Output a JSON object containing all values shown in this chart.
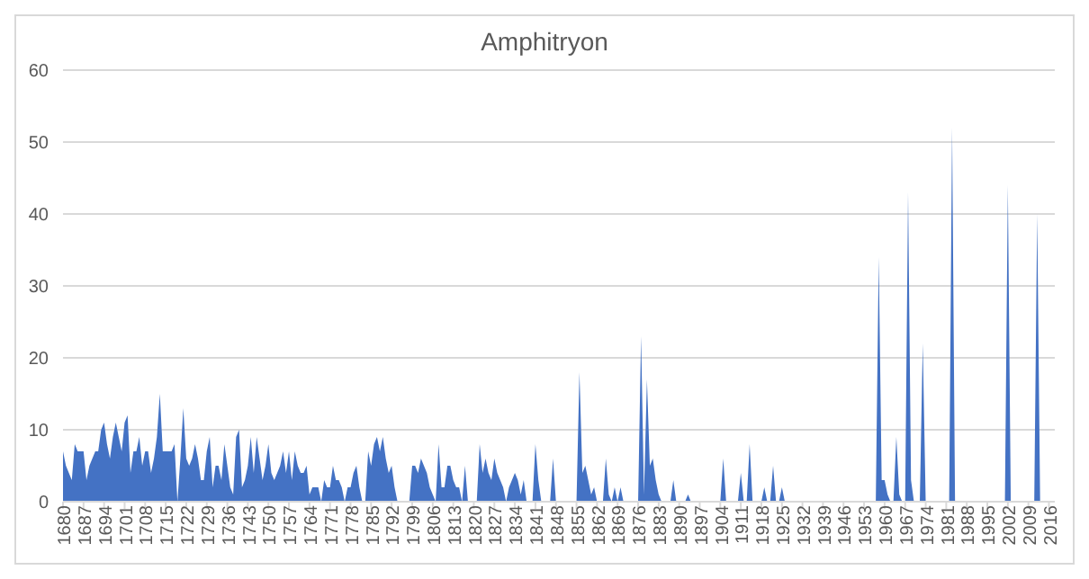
{
  "chart_data": {
    "type": "area",
    "title": "Amphitryon",
    "x": [
      1680,
      1681,
      1682,
      1683,
      1684,
      1685,
      1686,
      1687,
      1688,
      1689,
      1690,
      1691,
      1692,
      1693,
      1694,
      1695,
      1696,
      1697,
      1698,
      1699,
      1700,
      1701,
      1702,
      1703,
      1704,
      1705,
      1706,
      1707,
      1708,
      1709,
      1710,
      1711,
      1712,
      1713,
      1714,
      1715,
      1716,
      1717,
      1718,
      1719,
      1720,
      1721,
      1722,
      1723,
      1724,
      1725,
      1726,
      1727,
      1728,
      1729,
      1730,
      1731,
      1732,
      1733,
      1734,
      1735,
      1736,
      1737,
      1738,
      1739,
      1740,
      1741,
      1742,
      1743,
      1744,
      1745,
      1746,
      1747,
      1748,
      1749,
      1750,
      1751,
      1752,
      1753,
      1754,
      1755,
      1756,
      1757,
      1758,
      1759,
      1760,
      1761,
      1762,
      1763,
      1764,
      1765,
      1766,
      1767,
      1768,
      1769,
      1770,
      1771,
      1772,
      1773,
      1774,
      1775,
      1776,
      1777,
      1778,
      1779,
      1780,
      1781,
      1782,
      1783,
      1784,
      1785,
      1786,
      1787,
      1788,
      1789,
      1790,
      1791,
      1792,
      1793,
      1794,
      1798,
      1799,
      1800,
      1801,
      1802,
      1803,
      1804,
      1805,
      1806,
      1807,
      1808,
      1809,
      1810,
      1811,
      1812,
      1813,
      1814,
      1815,
      1816,
      1817,
      1818,
      1821,
      1822,
      1823,
      1824,
      1825,
      1826,
      1827,
      1828,
      1829,
      1830,
      1831,
      1832,
      1833,
      1834,
      1835,
      1836,
      1837,
      1838,
      1840,
      1841,
      1842,
      1843,
      1846,
      1847,
      1848,
      1855,
      1856,
      1857,
      1858,
      1859,
      1860,
      1861,
      1862,
      1864,
      1865,
      1866,
      1867,
      1868,
      1869,
      1870,
      1871,
      1876,
      1877,
      1878,
      1879,
      1880,
      1881,
      1882,
      1883,
      1884,
      1887,
      1888,
      1889,
      1892,
      1893,
      1894,
      1904,
      1905,
      1906,
      1910,
      1911,
      1912,
      1913,
      1914,
      1915,
      1918,
      1919,
      1920,
      1921,
      1922,
      1923,
      1924,
      1925,
      1926,
      1957,
      1958,
      1959,
      1960,
      1961,
      1962,
      1963,
      1964,
      1965,
      1966,
      1967,
      1968,
      1969,
      1970,
      1972,
      1973,
      1974,
      1982,
      1983,
      1984,
      2001,
      2002,
      2003,
      2011,
      2012,
      2013,
      2018
    ],
    "values": [
      7,
      5,
      4,
      3,
      8,
      7,
      7,
      7,
      3,
      5,
      6,
      7,
      7,
      10,
      11,
      8,
      6,
      9,
      11,
      9,
      7,
      11,
      12,
      4,
      7,
      7,
      9,
      5,
      7,
      7,
      4,
      6,
      9,
      15,
      7,
      7,
      7,
      7,
      8,
      0,
      6,
      13,
      6,
      5,
      6,
      8,
      6,
      3,
      3,
      7,
      9,
      2,
      5,
      5,
      3,
      8,
      5,
      2,
      1,
      9,
      10,
      2,
      3,
      5,
      9,
      4,
      9,
      6,
      3,
      5,
      8,
      4,
      3,
      4,
      5,
      7,
      4,
      7,
      3,
      7,
      5,
      4,
      4,
      5,
      1,
      2,
      2,
      2,
      0,
      3,
      2,
      2,
      5,
      3,
      3,
      2,
      0,
      2,
      2,
      4,
      5,
      2,
      0,
      0,
      7,
      5,
      8,
      9,
      7,
      9,
      6,
      4,
      5,
      2,
      0,
      0,
      5,
      5,
      4,
      6,
      5,
      4,
      2,
      1,
      0,
      8,
      2,
      2,
      5,
      5,
      3,
      2,
      2,
      0,
      5,
      0,
      0,
      8,
      4,
      6,
      4,
      3,
      6,
      4,
      3,
      2,
      0,
      2,
      3,
      4,
      3,
      1,
      3,
      0,
      0,
      8,
      3,
      0,
      0,
      6,
      0,
      0,
      18,
      4,
      5,
      3,
      1,
      2,
      0,
      0,
      6,
      1,
      0,
      2,
      0,
      2,
      0,
      0,
      23,
      1,
      17,
      5,
      6,
      3,
      1,
      0,
      0,
      3,
      0,
      0,
      1,
      0,
      0,
      6,
      0,
      0,
      4,
      0,
      0,
      8,
      0,
      0,
      2,
      0,
      0,
      5,
      0,
      0,
      2,
      0,
      0,
      34,
      3,
      3,
      1,
      0,
      0,
      9,
      1,
      0,
      0,
      43,
      3,
      0,
      0,
      22,
      0,
      0,
      52,
      0,
      0,
      44,
      0,
      0,
      40,
      0,
      0
    ],
    "color": "#4472c4",
    "xlim": [
      1680,
      2018
    ],
    "xticks": [
      1680,
      1687,
      1694,
      1701,
      1708,
      1715,
      1722,
      1729,
      1736,
      1743,
      1750,
      1757,
      1764,
      1771,
      1778,
      1785,
      1792,
      1799,
      1806,
      1813,
      1820,
      1827,
      1834,
      1841,
      1848,
      1855,
      1862,
      1869,
      1876,
      1883,
      1890,
      1897,
      1904,
      1911,
      1918,
      1925,
      1932,
      1939,
      1946,
      1953,
      1960,
      1967,
      1974,
      1981,
      1988,
      1995,
      2002,
      2009,
      2016
    ],
    "ylim": [
      0,
      60
    ],
    "yticks": [
      0,
      10,
      20,
      30,
      40,
      50,
      60
    ],
    "grid": "y"
  }
}
